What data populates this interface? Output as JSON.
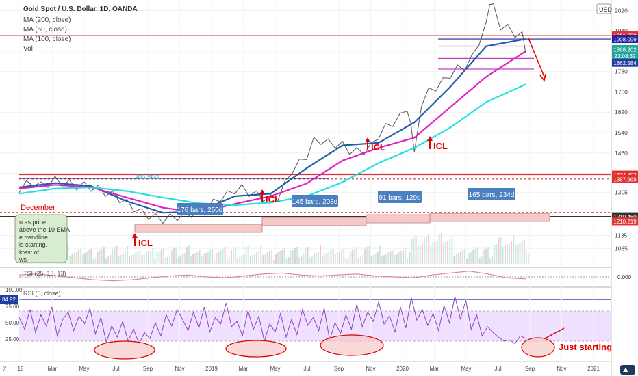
{
  "header": {
    "symbol": "Gold Spot / U.S. Dollar, 1D, OANDA",
    "ma200": "MA (200, close)",
    "ma50": "MA (50, close)",
    "ma100": "MA (100, close)",
    "vol": "Vol",
    "currency": "USD"
  },
  "colors": {
    "price": "#555555",
    "ma50": "#1f5fa8",
    "ma100": "#e020c0",
    "ma200": "#20e0e0",
    "level_red": "#e03030",
    "level_blue": "#2020a0",
    "annotation_red": "#e00000",
    "box_blue": "#4a7fc1",
    "rsi": "#9040c0",
    "rsi_band": "#f0e0ff",
    "tsi": "#e080b0"
  },
  "price_badges": [
    {
      "label": "1921.559",
      "value": 1921.559,
      "color": "#e03030"
    },
    {
      "label": "1908.099",
      "value": 1908.099,
      "color": "#2020a0"
    },
    {
      "label": "1868.202",
      "value": 1868.202,
      "color": "#26a69a"
    },
    {
      "label": "21:08:32",
      "value": 1842,
      "color": "#26a69a"
    },
    {
      "label": "1862.584",
      "value": 1815,
      "color": "#1f3fa0"
    },
    {
      "label": "1374.492",
      "value": 1374.492,
      "color": "#e03030"
    },
    {
      "label": "1357.668",
      "value": 1357.668,
      "color": "#e03030"
    },
    {
      "label": "1210.469",
      "value": 1210.469,
      "color": "#333333"
    },
    {
      "label": "1210.219",
      "value": 1192,
      "color": "#e03030"
    }
  ],
  "indicator_badges": [
    {
      "label": "0.000",
      "pane": "tsi"
    },
    {
      "label": "84.92",
      "pane": "rsi"
    }
  ],
  "annotations": {
    "icl_labels": [
      "ICL",
      "ICL",
      "ICL",
      "ICL"
    ],
    "cycle_boxes": [
      "176 bars, 250d",
      "145 bars, 203d",
      "91 bars, 129d",
      "165 bars, 234d"
    ],
    "sma_label": "200 SMA",
    "december": "December",
    "note_lines": [
      "n as price",
      "above the 10 EMA",
      "e trendline",
      "is starting.",
      "ktest of",
      "ws"
    ],
    "just_starting": "Just starting",
    "tsi_label": "TSI (25, 13, 13)",
    "rsi_label": "RSI (6, close)"
  },
  "chart_data": {
    "type": "line",
    "title": "Gold Spot / U.S. Dollar, 1D, OANDA",
    "x_ticks": [
      "18",
      "Mar",
      "May",
      "Jul",
      "Sep",
      "Nov",
      "2019",
      "Mar",
      "May",
      "Jul",
      "Sep",
      "Nov",
      "2020",
      "Mar",
      "May",
      "Jul",
      "Sep",
      "Nov",
      "2021"
    ],
    "y_ticks": [
      1085,
      1135,
      1210,
      1305,
      1380,
      1460,
      1540,
      1620,
      1700,
      1780,
      1860,
      1940,
      2020
    ],
    "ylim": [
      1040,
      2040
    ],
    "price_series": [
      [
        0,
        1320
      ],
      [
        2,
        1335
      ],
      [
        4,
        1345
      ],
      [
        6,
        1330
      ],
      [
        8,
        1340
      ],
      [
        10,
        1352
      ],
      [
        12,
        1345
      ],
      [
        14,
        1338
      ],
      [
        16,
        1330
      ],
      [
        18,
        1332
      ],
      [
        20,
        1325
      ],
      [
        22,
        1318
      ],
      [
        24,
        1305
      ],
      [
        26,
        1295
      ],
      [
        28,
        1280
      ],
      [
        30,
        1262
      ],
      [
        32,
        1245
      ],
      [
        34,
        1225
      ],
      [
        36,
        1215
      ],
      [
        38,
        1205
      ],
      [
        40,
        1200
      ],
      [
        42,
        1205
      ],
      [
        44,
        1210
      ],
      [
        46,
        1212
      ],
      [
        48,
        1222
      ],
      [
        50,
        1232
      ],
      [
        52,
        1240
      ],
      [
        54,
        1262
      ],
      [
        56,
        1285
      ],
      [
        58,
        1295
      ],
      [
        60,
        1315
      ],
      [
        62,
        1320
      ],
      [
        64,
        1305
      ],
      [
        66,
        1295
      ],
      [
        68,
        1285
      ],
      [
        70,
        1280
      ],
      [
        72,
        1290
      ],
      [
        74,
        1335
      ],
      [
        76,
        1395
      ],
      [
        78,
        1420
      ],
      [
        80,
        1450
      ],
      [
        82,
        1505
      ],
      [
        84,
        1510
      ],
      [
        86,
        1500
      ],
      [
        88,
        1495
      ],
      [
        90,
        1490
      ],
      [
        92,
        1470
      ],
      [
        94,
        1465
      ],
      [
        96,
        1470
      ],
      [
        98,
        1485
      ],
      [
        100,
        1530
      ],
      [
        102,
        1560
      ],
      [
        104,
        1580
      ],
      [
        106,
        1600
      ],
      [
        108,
        1640
      ],
      [
        109,
        1560
      ],
      [
        110,
        1480
      ],
      [
        111,
        1540
      ],
      [
        112,
        1660
      ],
      [
        114,
        1700
      ],
      [
        116,
        1720
      ],
      [
        118,
        1740
      ],
      [
        120,
        1770
      ],
      [
        122,
        1790
      ],
      [
        124,
        1800
      ],
      [
        126,
        1830
      ],
      [
        128,
        1900
      ],
      [
        130,
        1960
      ],
      [
        131,
        2060
      ],
      [
        132,
        2030
      ],
      [
        134,
        1960
      ],
      [
        136,
        1950
      ],
      [
        138,
        1930
      ],
      [
        140,
        1920
      ],
      [
        141,
        1868
      ]
    ],
    "series": [
      {
        "name": "MA (50, close)",
        "points": [
          [
            0,
            1325
          ],
          [
            10,
            1342
          ],
          [
            20,
            1330
          ],
          [
            30,
            1270
          ],
          [
            40,
            1225
          ],
          [
            50,
            1230
          ],
          [
            60,
            1290
          ],
          [
            70,
            1300
          ],
          [
            80,
            1400
          ],
          [
            90,
            1490
          ],
          [
            100,
            1500
          ],
          [
            110,
            1580
          ],
          [
            120,
            1720
          ],
          [
            130,
            1880
          ],
          [
            141,
            1908
          ]
        ]
      },
      {
        "name": "MA (100, close)",
        "points": [
          [
            0,
            1320
          ],
          [
            10,
            1335
          ],
          [
            20,
            1325
          ],
          [
            30,
            1285
          ],
          [
            40,
            1245
          ],
          [
            50,
            1225
          ],
          [
            60,
            1260
          ],
          [
            70,
            1290
          ],
          [
            80,
            1340
          ],
          [
            90,
            1430
          ],
          [
            100,
            1480
          ],
          [
            110,
            1520
          ],
          [
            120,
            1640
          ],
          [
            130,
            1760
          ],
          [
            141,
            1860
          ]
        ]
      },
      {
        "name": "MA (200, close)",
        "points": [
          [
            0,
            1300
          ],
          [
            10,
            1320
          ],
          [
            20,
            1325
          ],
          [
            30,
            1310
          ],
          [
            40,
            1285
          ],
          [
            50,
            1262
          ],
          [
            60,
            1255
          ],
          [
            70,
            1265
          ],
          [
            80,
            1290
          ],
          [
            90,
            1345
          ],
          [
            100,
            1420
          ],
          [
            110,
            1480
          ],
          [
            120,
            1560
          ],
          [
            130,
            1660
          ],
          [
            141,
            1730
          ]
        ]
      }
    ],
    "rsi": {
      "ylim": [
        0,
        100
      ],
      "y_ticks": [
        25,
        50,
        75,
        100
      ],
      "values": [
        58,
        40,
        70,
        35,
        62,
        45,
        74,
        30,
        55,
        66,
        38,
        60,
        48,
        72,
        33,
        58,
        20,
        45,
        28,
        52,
        22,
        40,
        18,
        35,
        26,
        50,
        30,
        62,
        45,
        70,
        55,
        38,
        66,
        42,
        74,
        36,
        58,
        48,
        80,
        44,
        52,
        30,
        68,
        40,
        60,
        22,
        48,
        36,
        64,
        28,
        55,
        32,
        70,
        46,
        58,
        38,
        72,
        24,
        50,
        34,
        62,
        40,
        78,
        44,
        66,
        52,
        82,
        48,
        60,
        36,
        74,
        42,
        88,
        54,
        70,
        46,
        64,
        38,
        76,
        50,
        90,
        56,
        84,
        40,
        62,
        30,
        44,
        35,
        28,
        22,
        24,
        18,
        30,
        26
      ]
    },
    "tsi": {
      "zero_line": 0.0,
      "values": [
        0.2,
        0.3,
        0.1,
        -0.1,
        -0.3,
        -0.4,
        -0.3,
        -0.1,
        0.1,
        0.2,
        0.0,
        -0.1,
        0.1,
        0.3,
        0.4,
        0.2,
        0.1,
        0.2,
        0.3,
        0.1,
        0.0,
        -0.1,
        0.2,
        0.4,
        0.6,
        0.3,
        -0.1,
        -0.2
      ]
    }
  }
}
